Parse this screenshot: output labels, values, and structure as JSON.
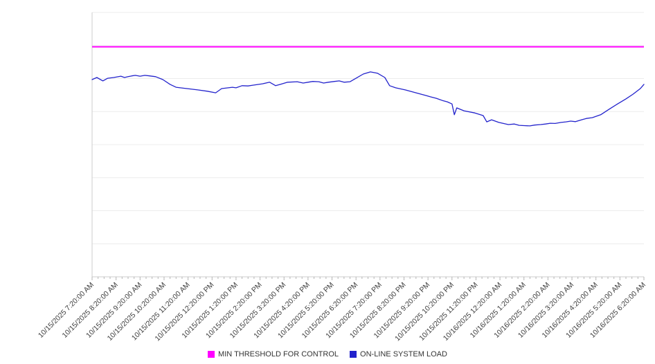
{
  "legend": {
    "items": [
      {
        "label": "MIN THRESHOLD FOR CONTROL",
        "color": "#ff00ff"
      },
      {
        "label": "ON-LINE SYSTEM LOAD",
        "color": "#2222cc"
      }
    ]
  },
  "chart_data": {
    "type": "line",
    "title": "",
    "xlabel": "",
    "ylabel": "",
    "ylim": [
      0,
      100
    ],
    "y_divisions": 8,
    "grid": true,
    "legend_position": "bottom",
    "x_tick_labels": [
      "10/15/2025 7:20:00 AM",
      "10/15/2025 8:20:00 AM",
      "10/15/2025 9:20:00 AM",
      "10/15/2025 10:20:00 AM",
      "10/15/2025 11:20:00 AM",
      "10/15/2025 12:20:00 PM",
      "10/15/2025 1:20:00 PM",
      "10/15/2025 2:20:00 PM",
      "10/15/2025 3:20:00 PM",
      "10/15/2025 4:20:00 PM",
      "10/15/2025 5:20:00 PM",
      "10/15/2025 6:20:00 PM",
      "10/15/2025 7:20:00 PM",
      "10/15/2025 8:20:00 PM",
      "10/15/2025 9:20:00 PM",
      "10/15/2025 10:20:00 PM",
      "10/15/2025 11:20:00 PM",
      "10/16/2025 12:20:00 AM",
      "10/16/2025 1:20:00 AM",
      "10/16/2025 2:20:00 AM",
      "10/16/2025 3:20:00 AM",
      "10/16/2025 4:20:00 AM",
      "10/16/2025 5:20:00 AM",
      "10/16/2025 6:20:00 AM"
    ],
    "series": [
      {
        "name": "MIN THRESHOLD FOR CONTROL",
        "type": "threshold-line",
        "color": "#ff00ff",
        "value": 87
      },
      {
        "name": "ON-LINE SYSTEM LOAD",
        "type": "line",
        "color": "#2222cc",
        "points": [
          [
            0,
            74.6
          ],
          [
            0.2,
            75.4
          ],
          [
            0.45,
            74.1
          ],
          [
            0.65,
            75.1
          ],
          [
            0.9,
            75.4
          ],
          [
            1.2,
            75.9
          ],
          [
            1.35,
            75.4
          ],
          [
            1.5,
            75.7
          ],
          [
            1.65,
            76.0
          ],
          [
            1.8,
            76.2
          ],
          [
            2.0,
            75.9
          ],
          [
            2.2,
            76.2
          ],
          [
            2.4,
            76.0
          ],
          [
            2.65,
            75.7
          ],
          [
            2.95,
            74.6
          ],
          [
            3.25,
            72.8
          ],
          [
            3.5,
            71.7
          ],
          [
            3.95,
            71.2
          ],
          [
            4.4,
            70.7
          ],
          [
            4.8,
            70.2
          ],
          [
            5.15,
            69.6
          ],
          [
            5.4,
            71.2
          ],
          [
            5.85,
            71.7
          ],
          [
            6.0,
            71.5
          ],
          [
            6.25,
            72.3
          ],
          [
            6.5,
            72.2
          ],
          [
            6.7,
            72.5
          ],
          [
            7.1,
            73.0
          ],
          [
            7.4,
            73.6
          ],
          [
            7.65,
            72.3
          ],
          [
            7.85,
            72.8
          ],
          [
            8.15,
            73.6
          ],
          [
            8.55,
            73.8
          ],
          [
            8.8,
            73.3
          ],
          [
            9.0,
            73.6
          ],
          [
            9.2,
            73.9
          ],
          [
            9.45,
            73.8
          ],
          [
            9.65,
            73.3
          ],
          [
            9.85,
            73.6
          ],
          [
            10.1,
            73.9
          ],
          [
            10.3,
            74.1
          ],
          [
            10.5,
            73.6
          ],
          [
            10.75,
            73.8
          ],
          [
            11.0,
            75.1
          ],
          [
            11.3,
            76.7
          ],
          [
            11.6,
            77.5
          ],
          [
            11.9,
            77.0
          ],
          [
            12.2,
            75.4
          ],
          [
            12.4,
            72.3
          ],
          [
            12.65,
            71.5
          ],
          [
            13.05,
            70.7
          ],
          [
            13.25,
            70.2
          ],
          [
            13.5,
            69.6
          ],
          [
            13.7,
            69.1
          ],
          [
            13.9,
            68.6
          ],
          [
            14.1,
            68.1
          ],
          [
            14.35,
            67.5
          ],
          [
            14.6,
            66.7
          ],
          [
            14.8,
            66.2
          ],
          [
            15.0,
            65.4
          ],
          [
            15.1,
            61.3
          ],
          [
            15.2,
            63.9
          ],
          [
            15.5,
            62.8
          ],
          [
            15.95,
            62.0
          ],
          [
            16.3,
            61.0
          ],
          [
            16.45,
            58.6
          ],
          [
            16.65,
            59.4
          ],
          [
            16.95,
            58.4
          ],
          [
            17.35,
            57.6
          ],
          [
            17.6,
            57.8
          ],
          [
            17.8,
            57.3
          ],
          [
            18.0,
            57.2
          ],
          [
            18.25,
            57.1
          ],
          [
            18.45,
            57.4
          ],
          [
            18.7,
            57.6
          ],
          [
            18.9,
            57.8
          ],
          [
            19.1,
            58.1
          ],
          [
            19.3,
            58.0
          ],
          [
            19.55,
            58.4
          ],
          [
            19.75,
            58.6
          ],
          [
            19.95,
            58.9
          ],
          [
            20.15,
            58.7
          ],
          [
            20.4,
            59.4
          ],
          [
            20.6,
            59.9
          ],
          [
            20.85,
            60.2
          ],
          [
            21.2,
            61.3
          ],
          [
            21.55,
            63.4
          ],
          [
            21.9,
            65.4
          ],
          [
            22.25,
            67.3
          ],
          [
            22.55,
            69.1
          ],
          [
            22.85,
            71.2
          ],
          [
            23,
            72.8
          ]
        ]
      }
    ],
    "style": {
      "gridline_color": "#ececec",
      "axis_color": "#cccccc",
      "tick_color": "#b5b5b5",
      "label_color": "#3d3d3d"
    }
  }
}
